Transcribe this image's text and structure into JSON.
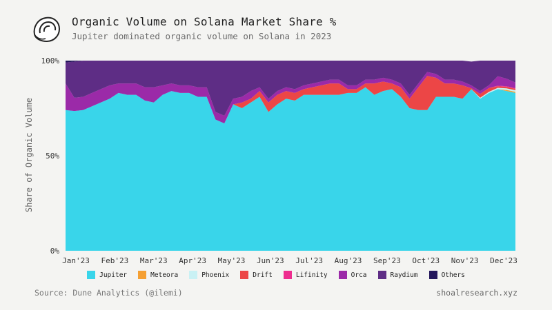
{
  "header": {
    "title": "Organic Volume on Solana Market Share %",
    "subtitle": "Jupiter dominated organic volume on Solana in 2023"
  },
  "footer": {
    "source": "Source: Dune Analytics (@ilemi)",
    "site": "shoalresearch.xyz"
  },
  "chart_data": {
    "type": "area",
    "stacked": true,
    "normalized": true,
    "title": "Organic Volume on Solana Market Share %",
    "subtitle": "Jupiter dominated organic volume on Solana in 2023",
    "xlabel": "",
    "ylabel": "Share of Organic Volume",
    "ylim": [
      0,
      100
    ],
    "y_ticks": [
      {
        "value": 0,
        "label": "0%"
      },
      {
        "value": 50,
        "label": "50%"
      },
      {
        "value": 100,
        "label": "100%"
      }
    ],
    "x_tick_labels": [
      "Jan'23",
      "Feb'23",
      "Mar'23",
      "Apr'23",
      "May'23",
      "Jun'23",
      "Jul'23",
      "Aug'23",
      "Sep'23",
      "Oct'23",
      "Nov'23",
      "Dec'23"
    ],
    "x": [
      "2022-12-26",
      "2023-01-02",
      "2023-01-09",
      "2023-01-16",
      "2023-01-23",
      "2023-01-30",
      "2023-02-06",
      "2023-02-13",
      "2023-02-20",
      "2023-02-27",
      "2023-03-06",
      "2023-03-13",
      "2023-03-20",
      "2023-03-27",
      "2023-04-03",
      "2023-04-10",
      "2023-04-17",
      "2023-04-24",
      "2023-05-01",
      "2023-05-08",
      "2023-05-15",
      "2023-05-22",
      "2023-05-29",
      "2023-06-05",
      "2023-06-12",
      "2023-06-19",
      "2023-06-26",
      "2023-07-03",
      "2023-07-10",
      "2023-07-17",
      "2023-07-24",
      "2023-07-31",
      "2023-08-07",
      "2023-08-14",
      "2023-08-21",
      "2023-08-28",
      "2023-09-04",
      "2023-09-11",
      "2023-09-18",
      "2023-09-25",
      "2023-10-02",
      "2023-10-09",
      "2023-10-16",
      "2023-10-23",
      "2023-10-30",
      "2023-11-06",
      "2023-11-13",
      "2023-11-20",
      "2023-11-27",
      "2023-12-04",
      "2023-12-11",
      "2023-12-18"
    ],
    "grid": false,
    "legend_position": "bottom",
    "series": [
      {
        "name": "Jupiter",
        "color": "#39d5ea",
        "values": [
          74,
          73.5,
          74,
          76,
          78,
          80,
          83,
          82,
          82,
          79,
          78,
          82,
          84,
          83,
          83,
          81,
          81,
          69,
          67,
          77,
          75,
          78,
          81,
          73,
          77,
          80,
          79,
          82,
          82,
          82,
          82,
          82,
          83,
          83,
          86,
          82,
          84,
          85,
          81,
          75,
          74,
          74,
          81,
          81,
          81,
          80,
          85,
          80,
          83,
          85,
          84,
          83
        ]
      },
      {
        "name": "Meteora",
        "color": "#f5a033",
        "values": [
          0,
          0,
          0,
          0,
          0,
          0,
          0,
          0,
          0,
          0,
          0,
          0,
          0,
          0,
          0,
          0,
          0,
          0,
          0,
          0,
          0,
          0,
          0,
          0,
          0,
          0,
          0,
          0,
          0,
          0,
          0,
          0,
          0,
          0,
          0,
          0,
          0,
          0,
          0,
          0,
          0,
          0,
          0,
          0,
          0,
          0,
          0,
          0,
          0,
          0,
          0.6,
          0.6
        ]
      },
      {
        "name": "Phoenix",
        "color": "#c9f1f4",
        "values": [
          0,
          0,
          0,
          0,
          0,
          0,
          0,
          0,
          0,
          0,
          0,
          0,
          0,
          0,
          0,
          0,
          0,
          0,
          0,
          0,
          0,
          0,
          0,
          0,
          0,
          0,
          0,
          0,
          0,
          0,
          0,
          0,
          0,
          0,
          0,
          0,
          0,
          0,
          0,
          0,
          0,
          0,
          0,
          0,
          0,
          0,
          0,
          0.5,
          0.6,
          0.7,
          0.8,
          0.8
        ]
      },
      {
        "name": "Drift",
        "color": "#ec4646",
        "values": [
          0,
          0,
          0,
          0,
          0,
          0,
          0,
          0,
          0,
          0,
          0,
          0,
          0,
          0,
          0,
          0,
          0,
          0,
          0,
          0,
          3,
          2,
          3,
          5,
          5,
          4,
          4,
          3,
          4,
          5,
          6,
          6,
          2,
          2,
          2,
          6,
          5,
          3,
          5,
          5,
          12,
          18,
          10,
          7,
          7,
          7,
          0.5,
          2,
          2,
          0.8,
          0.8,
          0.8
        ]
      },
      {
        "name": "Lifinity",
        "color": "#ee2d8f",
        "values": [
          0,
          0,
          0,
          0,
          0,
          0,
          0,
          0,
          0,
          0,
          0,
          0,
          0,
          0,
          0,
          0,
          0,
          0,
          0,
          0,
          0,
          0,
          0,
          0,
          0,
          0,
          0,
          0,
          0,
          0,
          0,
          0,
          0,
          0,
          0,
          0,
          0,
          0,
          0,
          0,
          0,
          0,
          0,
          0,
          0,
          0,
          0,
          0,
          0,
          0.3,
          0.3,
          0.3
        ]
      },
      {
        "name": "Orca",
        "color": "#9b2aa8",
        "values": [
          14,
          7,
          7,
          7,
          7,
          7,
          5,
          6,
          6,
          7,
          8,
          5,
          4,
          4,
          4,
          5,
          5,
          4,
          4,
          3,
          3,
          4,
          2,
          2,
          2,
          2,
          2,
          2,
          2,
          2,
          2,
          2,
          2,
          2,
          2,
          2,
          2,
          2,
          2,
          2,
          2,
          2,
          2,
          2,
          2,
          2,
          1.5,
          1.5,
          1.5,
          5,
          4,
          3
        ]
      },
      {
        "name": "Raydium",
        "color": "#5e2d85",
        "values": [
          11,
          19,
          19,
          17,
          15,
          13,
          12,
          12,
          12,
          14,
          14,
          13,
          12,
          13,
          13,
          14,
          14,
          27,
          29,
          20,
          19,
          16,
          14,
          20,
          16,
          14,
          15,
          13,
          12,
          11,
          10,
          10,
          13,
          13,
          10,
          10,
          9,
          10,
          12,
          18,
          12,
          6,
          7,
          10,
          10,
          11,
          12.5,
          16,
          12.9,
          8.2,
          9.5,
          12.1
        ]
      },
      {
        "name": "Others",
        "color": "#23175c",
        "values": [
          1,
          0.5,
          0,
          0,
          0,
          0,
          0,
          0,
          0,
          0,
          0,
          0,
          0,
          0,
          0,
          0,
          0,
          0,
          0,
          0,
          0,
          0,
          0,
          0,
          0,
          0,
          0,
          0,
          0,
          0,
          0,
          0,
          0,
          0,
          0,
          0,
          0,
          0,
          0,
          0,
          0,
          0,
          0,
          0,
          0,
          0,
          0,
          0,
          0,
          0,
          0,
          0
        ]
      }
    ]
  }
}
